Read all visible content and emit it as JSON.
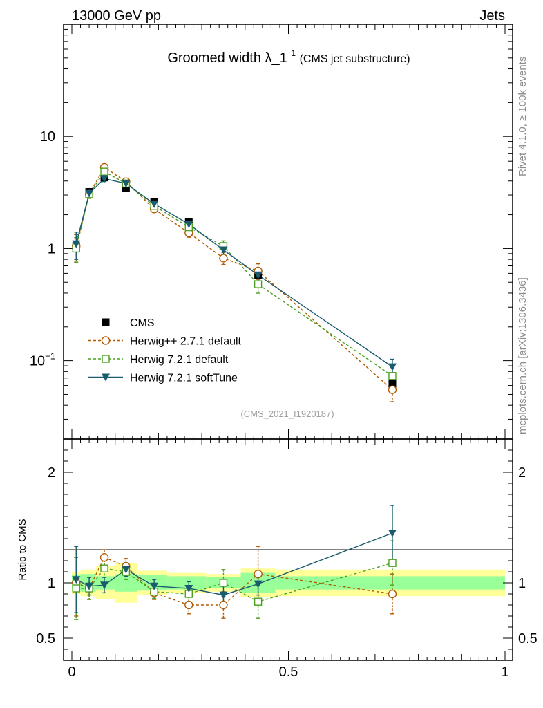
{
  "header": {
    "left": "13000 GeV pp",
    "right": "Jets"
  },
  "title": {
    "main": "Groomed width",
    "symbol": "λ_1",
    "superscript": "1",
    "subtitle": "(CMS jet substructure)"
  },
  "side_labels": {
    "rivet": "Rivet 4.1.0, ≥ 100k events",
    "mcplots": "mcplots.cern.ch [arXiv:1306.3436]"
  },
  "analysis_id": "(CMS_2021_I1920187)",
  "colors": {
    "cms": "#000000",
    "herwigpp": "#b35900",
    "herwig721": "#4aa01e",
    "softtune": "#1a5c6e",
    "band_inner": "#99ff99",
    "band_outer": "#ffff99"
  },
  "chart_data": [
    {
      "type": "scatter",
      "panel": "main",
      "yscale": "log",
      "xlim": [
        0,
        1
      ],
      "ylim": [
        0.02,
        100
      ],
      "yticks": [
        {
          "value": 0.1,
          "label": "10",
          "sup": "−1"
        },
        {
          "value": 1,
          "label": "1",
          "sup": ""
        },
        {
          "value": 10,
          "label": "10",
          "sup": ""
        }
      ],
      "legend_position": "bottom-left",
      "series": [
        {
          "name": "CMS",
          "key": "cms",
          "marker": "square-filled",
          "line": "none",
          "x": [
            0.01,
            0.04,
            0.075,
            0.125,
            0.19,
            0.27,
            0.35,
            0.43,
            0.74
          ],
          "y": [
            1.05,
            3.2,
            4.3,
            3.45,
            2.6,
            1.72,
            1.05,
            0.58,
            0.062
          ],
          "yerr": [
            0,
            0,
            0,
            0,
            0,
            0,
            0,
            0,
            0
          ]
        },
        {
          "name": "Herwig++ 2.7.1 default",
          "key": "herwigpp",
          "marker": "circle-open",
          "line": "dashed",
          "x": [
            0.01,
            0.04,
            0.075,
            0.125,
            0.19,
            0.27,
            0.35,
            0.43,
            0.74
          ],
          "y": [
            1.05,
            3.05,
            5.3,
            3.95,
            2.25,
            1.38,
            0.82,
            0.63,
            0.055
          ],
          "yerr": [
            0.28,
            0.25,
            0.3,
            0.2,
            0.15,
            0.12,
            0.1,
            0.1,
            0.012
          ]
        },
        {
          "name": "Herwig 7.2.1 default",
          "key": "herwig721",
          "marker": "square-open",
          "line": "dashed",
          "x": [
            0.01,
            0.04,
            0.075,
            0.125,
            0.19,
            0.27,
            0.35,
            0.43,
            0.74
          ],
          "y": [
            1.0,
            3.05,
            4.85,
            3.8,
            2.4,
            1.55,
            1.05,
            0.48,
            0.073
          ],
          "yerr": [
            0.25,
            0.25,
            0.3,
            0.2,
            0.15,
            0.12,
            0.12,
            0.08,
            0.014
          ]
        },
        {
          "name": "Herwig 7.2.1 softTune",
          "key": "softtune",
          "marker": "triangle-down-filled",
          "line": "solid",
          "x": [
            0.01,
            0.04,
            0.075,
            0.125,
            0.19,
            0.27,
            0.35,
            0.43,
            0.74
          ],
          "y": [
            1.1,
            3.1,
            4.2,
            3.8,
            2.5,
            1.65,
            0.97,
            0.58,
            0.088
          ],
          "yerr": [
            0.3,
            0.2,
            0.25,
            0.18,
            0.12,
            0.12,
            0.1,
            0.08,
            0.015
          ]
        }
      ]
    },
    {
      "type": "scatter",
      "panel": "ratio",
      "xlim": [
        0,
        1
      ],
      "ylim": [
        0.3,
        2.3
      ],
      "ylabel": "Ratio to CMS",
      "yticks": [
        {
          "value": 0.5,
          "label": "0.5"
        },
        {
          "value": 1,
          "label": "1"
        },
        {
          "value": 2,
          "label": "2"
        }
      ],
      "xticks": [
        {
          "value": 0,
          "label": "0"
        },
        {
          "value": 0.5,
          "label": "0.5"
        },
        {
          "value": 1,
          "label": "1"
        }
      ],
      "bands": {
        "edges": [
          0,
          0.02,
          0.055,
          0.1,
          0.15,
          0.22,
          0.31,
          0.39,
          0.47,
          1.0
        ],
        "inner": [
          0.07,
          0.08,
          0.06,
          0.08,
          0.07,
          0.06,
          0.05,
          0.09,
          0.06
        ],
        "outer": [
          0.1,
          0.12,
          0.15,
          0.18,
          0.11,
          0.09,
          0.08,
          0.13,
          0.12
        ]
      },
      "series": [
        {
          "key": "herwigpp",
          "x": [
            0.01,
            0.04,
            0.075,
            0.125,
            0.19,
            0.27,
            0.35,
            0.43,
            0.74
          ],
          "y": [
            1.0,
            0.95,
            1.23,
            1.15,
            0.91,
            0.8,
            0.8,
            1.08,
            0.9
          ],
          "yerr": [
            0.3,
            0.1,
            0.07,
            0.07,
            0.06,
            0.08,
            0.12,
            0.25,
            0.18
          ]
        },
        {
          "key": "herwig721",
          "x": [
            0.01,
            0.04,
            0.075,
            0.125,
            0.19,
            0.27,
            0.35,
            0.43,
            0.74
          ],
          "y": [
            0.95,
            0.95,
            1.13,
            1.1,
            0.92,
            0.9,
            1.0,
            0.83,
            1.18
          ],
          "yerr": [
            0.28,
            0.1,
            0.08,
            0.07,
            0.06,
            0.07,
            0.12,
            0.15,
            0.2
          ]
        },
        {
          "key": "softtune",
          "x": [
            0.01,
            0.04,
            0.075,
            0.125,
            0.19,
            0.27,
            0.35,
            0.43,
            0.74
          ],
          "y": [
            1.03,
            0.97,
            0.98,
            1.12,
            0.97,
            0.95,
            0.89,
            0.99,
            1.45
          ],
          "yerr": [
            0.3,
            0.08,
            0.07,
            0.06,
            0.06,
            0.06,
            0.09,
            0.1,
            0.25
          ]
        }
      ]
    }
  ]
}
